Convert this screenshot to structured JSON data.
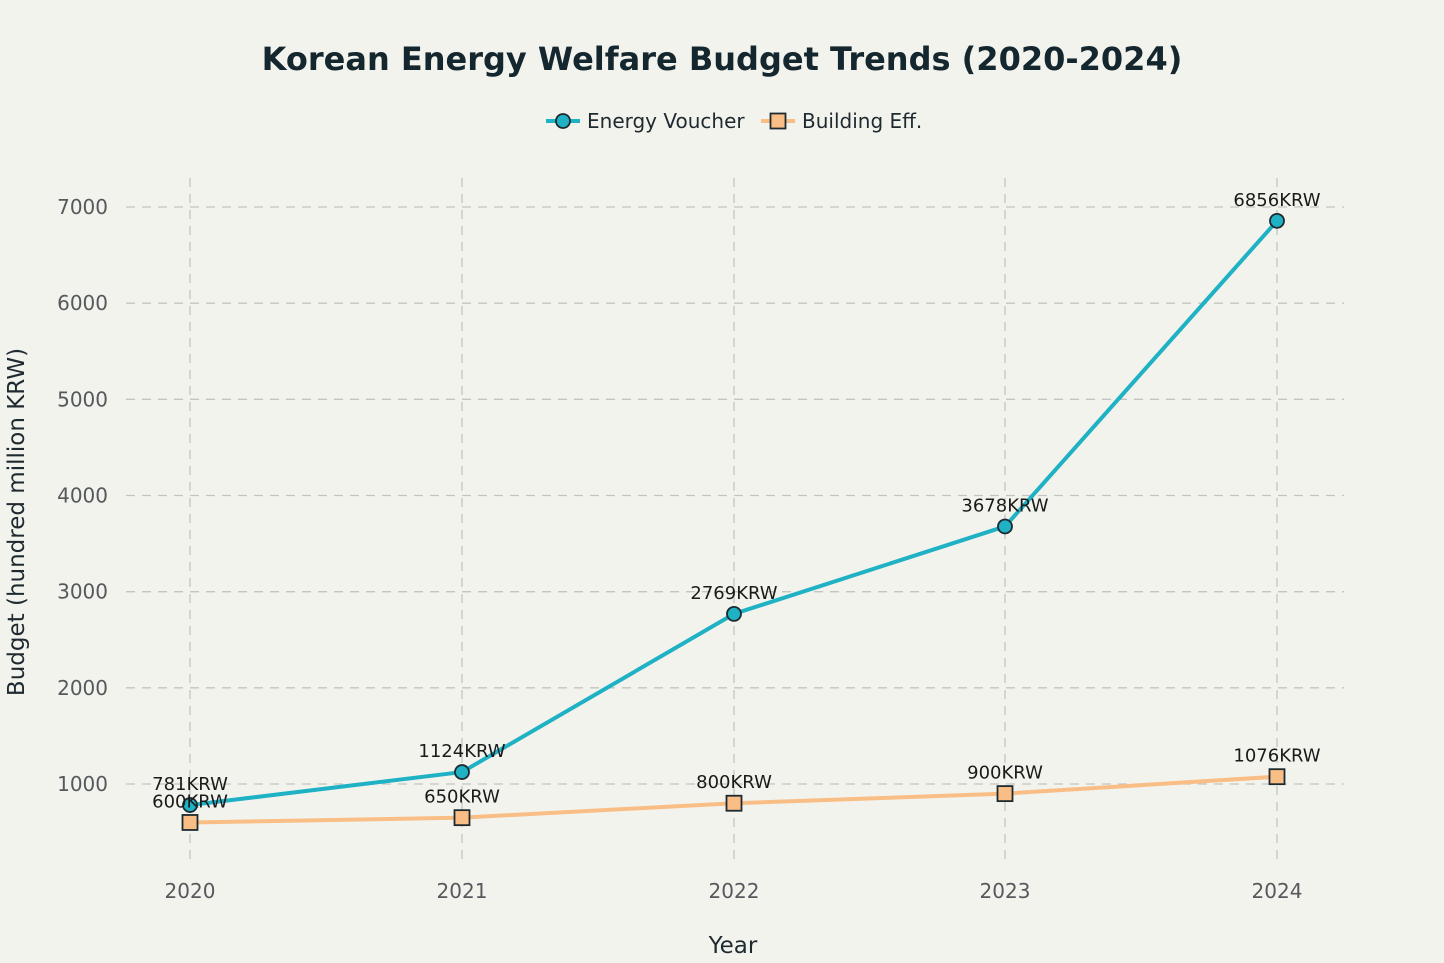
{
  "chart_data": {
    "type": "line",
    "title": "Korean Energy Welfare Budget Trends (2020-2024)",
    "xlabel": "Year",
    "ylabel": "Budget (hundred million KRW)",
    "x": [
      2020,
      2021,
      2022,
      2023,
      2024
    ],
    "x_tick_labels": [
      "2020",
      "2021",
      "2022",
      "2023",
      "2024"
    ],
    "y_ticks": [
      1000,
      2000,
      3000,
      4000,
      5000,
      6000,
      7000
    ],
    "y_tick_labels": [
      "1000",
      "2000",
      "3000",
      "4000",
      "5000",
      "6000",
      "7000"
    ],
    "ylim": [
      150,
      7750
    ],
    "grid": true,
    "legend_position": "top-center",
    "series": [
      {
        "name": "Energy Voucher",
        "values": [
          781,
          1124,
          2769,
          3678,
          6856
        ],
        "labels": [
          "781KRW",
          "1124KRW",
          "2769KRW",
          "3678KRW",
          "6856KRW"
        ],
        "color": "#1fb1c4",
        "marker": "circle"
      },
      {
        "name": "Building Eff.",
        "values": [
          600,
          650,
          800,
          900,
          1076
        ],
        "labels": [
          "600KRW",
          "650KRW",
          "800KRW",
          "900KRW",
          "1076KRW"
        ],
        "color": "#f9be85",
        "marker": "square"
      }
    ]
  }
}
